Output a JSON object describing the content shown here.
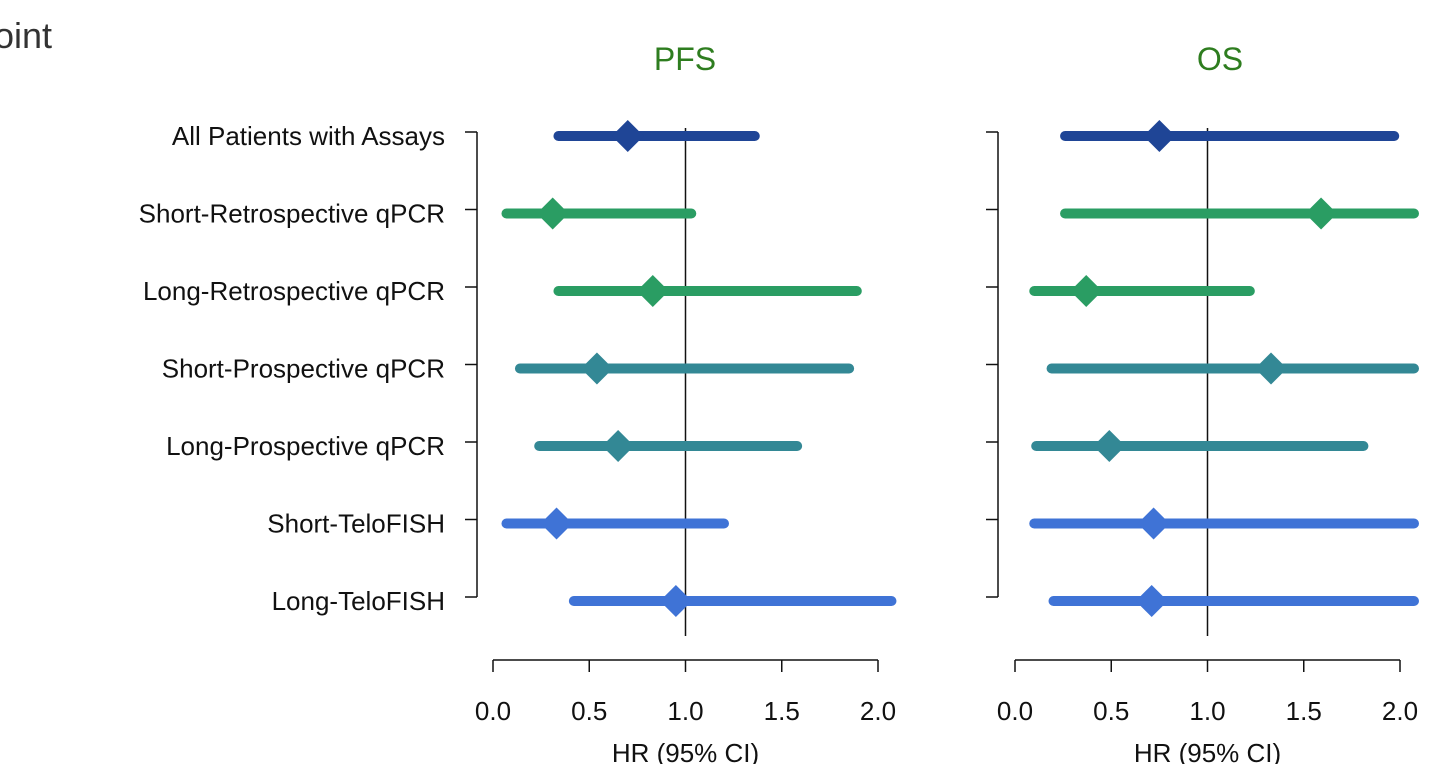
{
  "page": {
    "title": "oint"
  },
  "colors": {
    "navy": "#1f4596",
    "green": "#2a9d63",
    "teal": "#338895",
    "blue": "#3f73d6"
  },
  "chart_data": [
    {
      "type": "forest",
      "title": "PFS",
      "xlabel": "HR (95% CI)",
      "xlim": [
        0.0,
        2.0
      ],
      "xticks": [
        "0.0",
        "0.5",
        "1.0",
        "1.5",
        "2.0"
      ],
      "xtick_values": [
        0.0,
        0.5,
        1.0,
        1.5,
        2.0
      ],
      "reference_line": 1.0,
      "rows": [
        {
          "label": "All Patients with Assays",
          "hr": 0.7,
          "lo": 0.34,
          "hi": 1.36,
          "color": "#1f4596"
        },
        {
          "label": "Short-Retrospective qPCR",
          "hr": 0.31,
          "lo": 0.07,
          "hi": 1.03,
          "color": "#2a9d63"
        },
        {
          "label": "Long-Retrospective qPCR",
          "hr": 0.83,
          "lo": 0.34,
          "hi": 1.89,
          "color": "#2a9d63"
        },
        {
          "label": "Short-Prospective qPCR",
          "hr": 0.54,
          "lo": 0.14,
          "hi": 1.85,
          "color": "#338895"
        },
        {
          "label": "Long-Prospective qPCR",
          "hr": 0.65,
          "lo": 0.24,
          "hi": 1.58,
          "color": "#338895"
        },
        {
          "label": "Short-TeloFISH",
          "hr": 0.33,
          "lo": 0.07,
          "hi": 1.2,
          "color": "#3f73d6"
        },
        {
          "label": "Long-TeloFISH",
          "hr": 0.95,
          "lo": 0.42,
          "hi": 2.07,
          "color": "#3f73d6"
        }
      ]
    },
    {
      "type": "forest",
      "title": "OS",
      "xlabel": "HR (95% CI)",
      "xlim": [
        0.0,
        2.0
      ],
      "xticks": [
        "0.0",
        "0.5",
        "1.0",
        "1.5",
        "2.0"
      ],
      "xtick_values": [
        0.0,
        0.5,
        1.0,
        1.5,
        2.0
      ],
      "reference_line": 1.0,
      "rows": [
        {
          "label": "All Patients with Assays",
          "hr": 0.75,
          "lo": 0.26,
          "hi": 1.97,
          "color": "#1f4596"
        },
        {
          "label": "Short-Retrospective qPCR",
          "hr": 1.59,
          "lo": 0.26,
          "hi": 2.08,
          "color": "#2a9d63"
        },
        {
          "label": "Long-Retrospective qPCR",
          "hr": 0.37,
          "lo": 0.1,
          "hi": 1.22,
          "color": "#2a9d63"
        },
        {
          "label": "Short-Prospective qPCR",
          "hr": 1.33,
          "lo": 0.19,
          "hi": 2.08,
          "color": "#338895"
        },
        {
          "label": "Long-Prospective qPCR",
          "hr": 0.49,
          "lo": 0.11,
          "hi": 1.81,
          "color": "#338895"
        },
        {
          "label": "Short-TeloFISH",
          "hr": 0.72,
          "lo": 0.1,
          "hi": 2.08,
          "color": "#3f73d6"
        },
        {
          "label": "Long-TeloFISH",
          "hr": 0.71,
          "lo": 0.2,
          "hi": 2.08,
          "color": "#3f73d6"
        }
      ]
    }
  ]
}
